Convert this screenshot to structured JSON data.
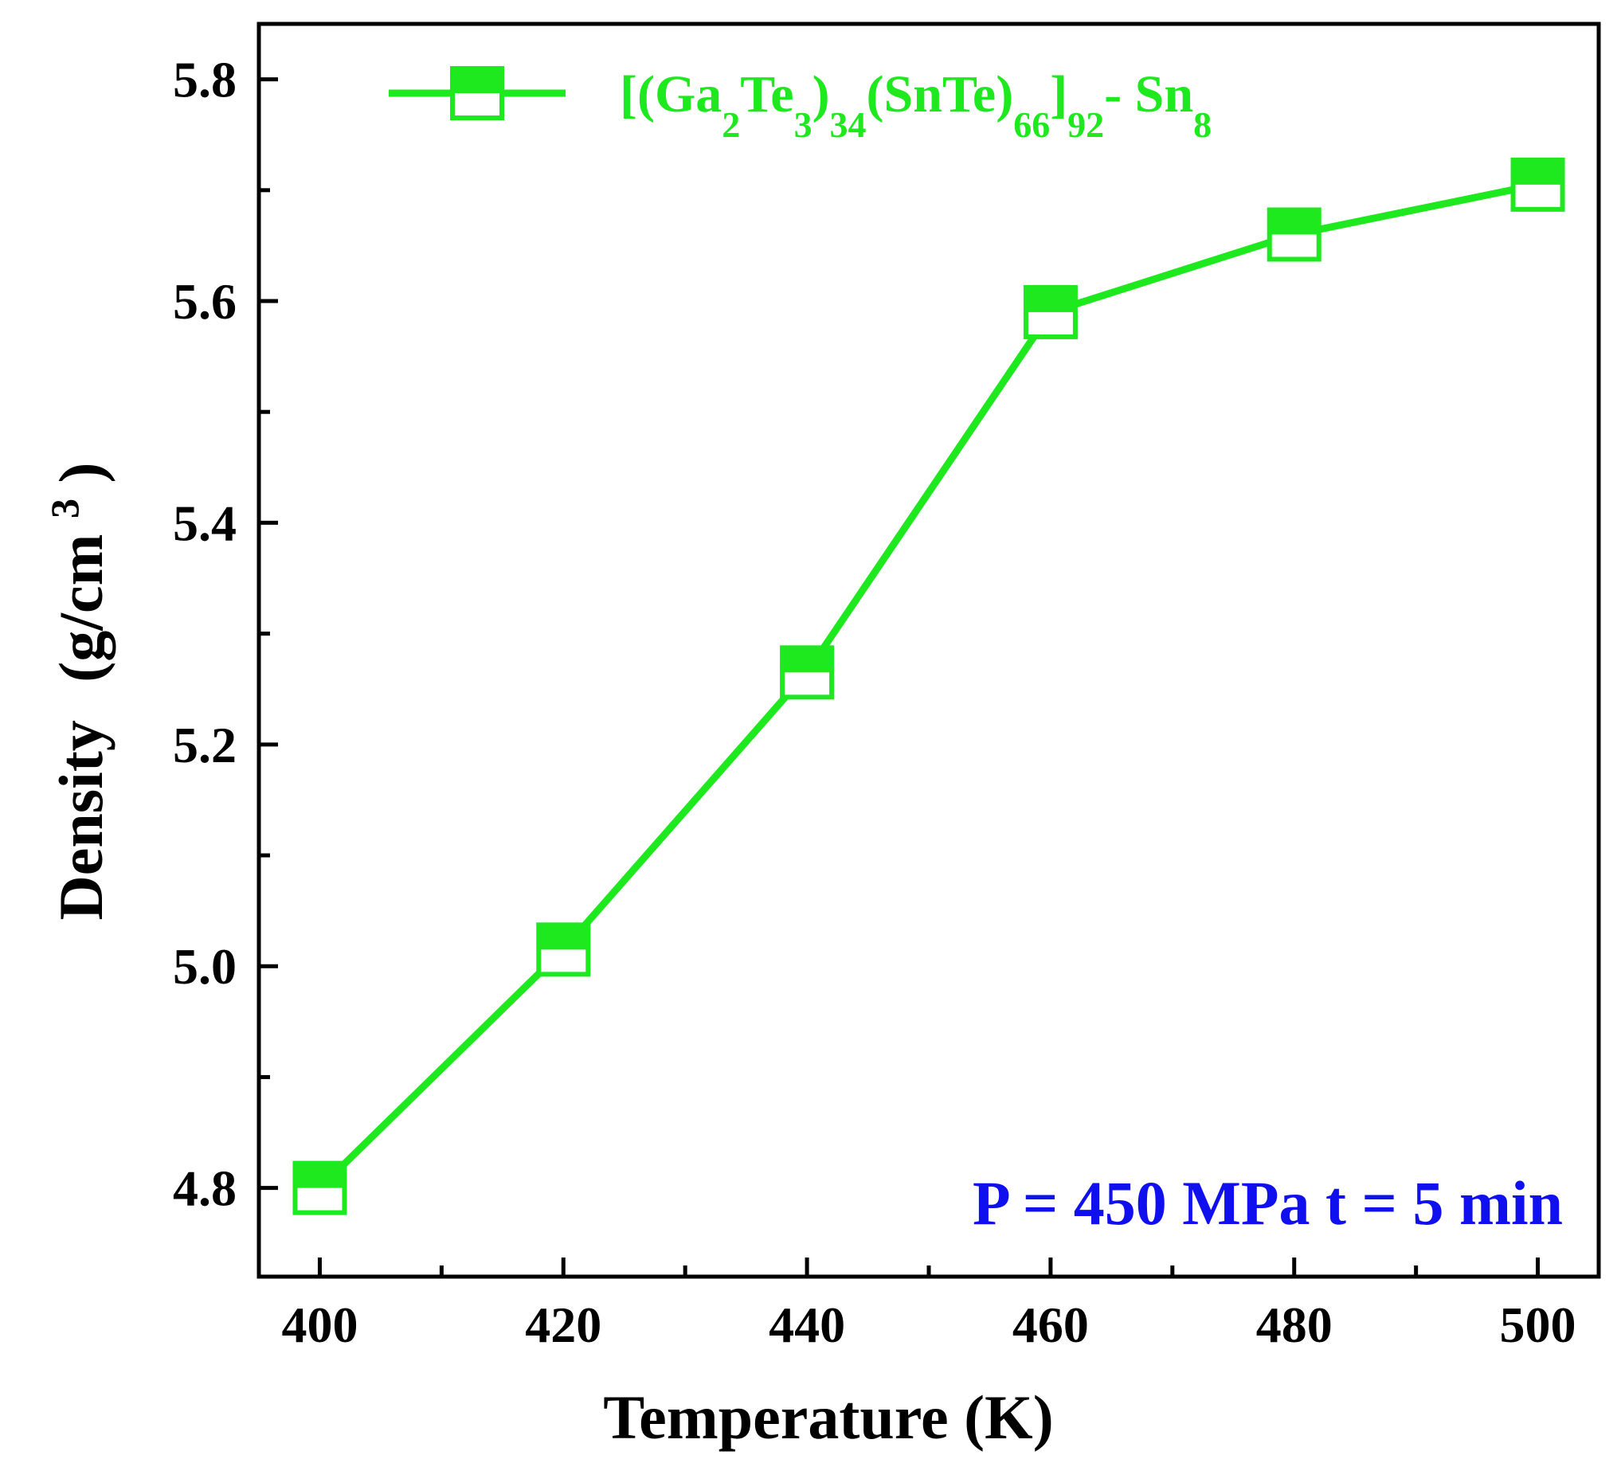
{
  "chart_data": {
    "type": "line",
    "title": "",
    "xlabel": "Temperature (K)",
    "ylabel": {
      "main": "Density",
      "unit_prefix": "(g/cm",
      "unit_superscript": "3",
      "unit_suffix": ")"
    },
    "xlim": [
      395,
      505
    ],
    "ylim": [
      4.72,
      5.85
    ],
    "x_major_ticks": [
      400,
      420,
      440,
      460,
      480,
      500
    ],
    "x_tick_labels": [
      "400",
      "420",
      "440",
      "460",
      "480",
      "500"
    ],
    "x_minor_ticks": [
      410,
      430,
      450,
      470,
      490
    ],
    "y_major_ticks": [
      4.8,
      5.0,
      5.2,
      5.4,
      5.6,
      5.8
    ],
    "y_tick_labels": [
      "4.8",
      "5.0",
      "5.2",
      "5.4",
      "5.6",
      "5.8"
    ],
    "y_minor_ticks": [
      4.9,
      5.1,
      5.3,
      5.5,
      5.7
    ],
    "grid": false,
    "series": [
      {
        "name": "[(Ga2Te3)34(SnTe)66]92- Sn8",
        "color": "#1ee81e",
        "marker": "half-filled-square",
        "x": [
          400,
          420,
          440,
          460,
          480,
          500
        ],
        "values": [
          4.8,
          5.015,
          5.265,
          5.59,
          5.66,
          5.705
        ]
      }
    ],
    "legend": {
      "position": "top",
      "label_parts": [
        {
          "text": "[(Ga",
          "role": "normal"
        },
        {
          "text": "2",
          "role": "sub"
        },
        {
          "text": "Te",
          "role": "normal"
        },
        {
          "text": "3",
          "role": "sub"
        },
        {
          "text": ")",
          "role": "normal"
        },
        {
          "text": "34",
          "role": "sub"
        },
        {
          "text": "(SnTe)",
          "role": "normal"
        },
        {
          "text": "66",
          "role": "sub"
        },
        {
          "text": "]",
          "role": "normal"
        },
        {
          "text": "92",
          "role": "sub"
        },
        {
          "text": "- Sn",
          "role": "normal"
        },
        {
          "text": "8",
          "role": "sub"
        }
      ]
    },
    "annotation": {
      "text": "P = 450 MPa  t = 5 min",
      "color": "#1010ee",
      "position": "bottom-right"
    }
  }
}
